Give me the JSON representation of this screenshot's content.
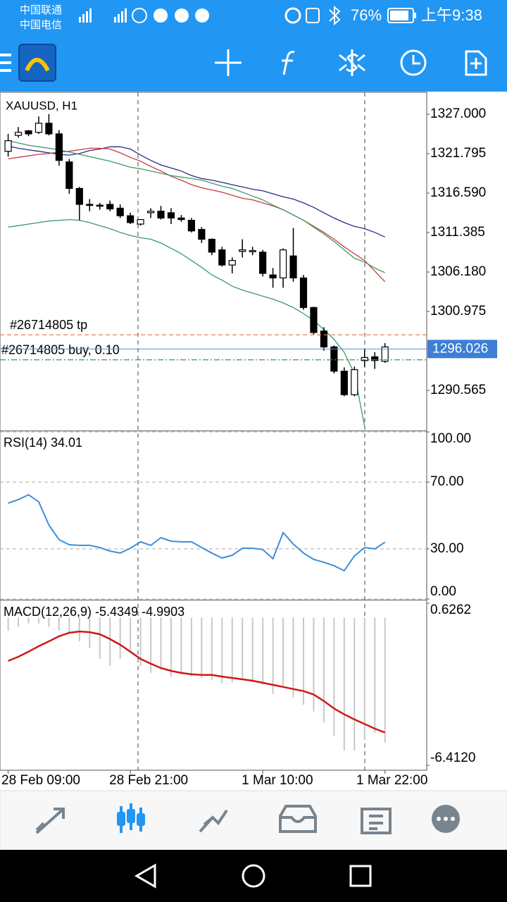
{
  "status_bar": {
    "carrier1": "中国联通",
    "carrier2": "中国电信",
    "battery": "76%",
    "time": "上午9:38"
  },
  "chart_data": [
    {
      "type": "candlestick",
      "title": "XAUUSD, H1",
      "xlim": [
        -0.8,
        41.1
      ],
      "open": [
        1322.1,
        1324.2,
        1324.8,
        1324.6,
        1325.8,
        1324.4,
        1320.7,
        1317.2,
        1315.1,
        1315.0,
        1315.1,
        1314.6,
        1313.6,
        1312.5,
        1314.0,
        1314.2,
        1314.0,
        1313.3,
        1313.0,
        1311.8,
        1310.5,
        1309.1,
        1307.1,
        1308.9,
        1309.0,
        1308.8,
        1305.8,
        1305.4,
        1308.3,
        1305.4,
        1301.5,
        1298.4,
        1296.3,
        1293.1,
        1290.0,
        1294.5,
        1295.0,
        1294.4
      ],
      "high": [
        1324.4,
        1325.3,
        1324.9,
        1326.7,
        1327.0,
        1324.9,
        1321.1,
        1317.4,
        1315.8,
        1315.3,
        1315.6,
        1315.1,
        1314.0,
        1313.1,
        1314.6,
        1314.9,
        1314.6,
        1313.7,
        1313.3,
        1312.1,
        1310.6,
        1309.5,
        1308.1,
        1310.5,
        1309.5,
        1309.1,
        1306.7,
        1309.3,
        1312.0,
        1305.8,
        1301.6,
        1298.9,
        1296.5,
        1293.6,
        1293.7,
        1296.1,
        1295.6,
        1296.8
      ],
      "low": [
        1321.4,
        1323.9,
        1324.1,
        1324.4,
        1324.2,
        1320.2,
        1316.5,
        1313.0,
        1314.2,
        1314.4,
        1314.2,
        1313.3,
        1312.5,
        1312.3,
        1313.3,
        1313.1,
        1312.5,
        1312.8,
        1311.4,
        1310.0,
        1308.4,
        1306.9,
        1306.0,
        1308.1,
        1308.4,
        1305.6,
        1304.1,
        1304.1,
        1304.9,
        1301.2,
        1297.9,
        1295.8,
        1292.8,
        1289.8,
        1289.8,
        1293.7,
        1293.4,
        1294.2
      ],
      "close": [
        1323.5,
        1324.6,
        1324.4,
        1325.8,
        1324.4,
        1320.9,
        1317.2,
        1315.1,
        1315.0,
        1314.9,
        1314.5,
        1313.6,
        1312.7,
        1313.1,
        1314.2,
        1313.3,
        1313.3,
        1313.1,
        1311.6,
        1310.5,
        1308.8,
        1307.1,
        1307.7,
        1309.1,
        1309.0,
        1306.0,
        1305.4,
        1309.1,
        1305.4,
        1301.5,
        1298.2,
        1296.3,
        1293.1,
        1290.0,
        1293.3,
        1294.9,
        1294.5,
        1296.3
      ],
      "series": [
        {
          "color": "#2a2a8c",
          "values": [
            1322.8,
            1322.5,
            1322.3,
            1322.1,
            1321.9,
            1321.7,
            1321.6,
            1321.8,
            1322.2,
            1322.4,
            1322.7,
            1322.7,
            1322.4,
            1321.6,
            1320.9,
            1320.3,
            1319.9,
            1319.5,
            1318.9,
            1318.5,
            1318.3,
            1318.0,
            1317.7,
            1317.4,
            1317.1,
            1316.9,
            1316.5,
            1316.1,
            1315.8,
            1315.3,
            1314.7,
            1314.0,
            1313.3,
            1312.7,
            1312.2,
            1311.9,
            1311.4,
            1310.8
          ]
        },
        {
          "color": "#c83a3a",
          "values": [
            1321.1,
            1321.3,
            1321.5,
            1321.7,
            1321.8,
            1322.0,
            1322.1,
            1322.3,
            1322.5,
            1322.5,
            1322.4,
            1321.9,
            1321.3,
            1320.8,
            1320.1,
            1319.5,
            1318.8,
            1318.3,
            1317.7,
            1317.3,
            1317.0,
            1316.7,
            1316.3,
            1315.9,
            1315.7,
            1315.3,
            1314.9,
            1314.4,
            1313.7,
            1313.0,
            1312.2,
            1311.4,
            1310.5,
            1309.5,
            1308.6,
            1307.7,
            1306.3,
            1304.9
          ]
        },
        {
          "color": "#3a9a68",
          "values": [
            1323.5,
            1323.2,
            1322.9,
            1322.7,
            1322.5,
            1322.3,
            1322.0,
            1321.7,
            1321.4,
            1321.1,
            1320.8,
            1320.4,
            1320.0,
            1319.8,
            1319.5,
            1319.2,
            1318.9,
            1318.7,
            1318.5,
            1318.3,
            1317.9,
            1317.5,
            1317.2,
            1316.7,
            1316.2,
            1315.7,
            1315.0,
            1314.4,
            1313.7,
            1313.0,
            1312.1,
            1311.2,
            1310.2,
            1309.1,
            1308.0,
            1307.5,
            1306.7,
            1306.1
          ]
        },
        {
          "color": "#3a9a68",
          "values": [
            1312.1,
            1312.3,
            1312.5,
            1312.7,
            1312.9,
            1313.0,
            1313.1,
            1313.0,
            1312.7,
            1312.3,
            1311.9,
            1311.4,
            1311.0,
            1310.7,
            1310.5,
            1310.0,
            1309.3,
            1308.6,
            1307.7,
            1306.8,
            1305.8,
            1305.1,
            1304.3,
            1303.8,
            1303.4,
            1303.0,
            1302.6,
            1302.1,
            1301.5,
            1300.7,
            1299.8,
            1298.6,
            1297.3,
            1295.6,
            1292.8,
            1285.8,
            null,
            null
          ]
        }
      ],
      "ylim": [
        1285.27,
        1329.88
      ],
      "yticks": [
        {
          "value": 1327,
          "label": "1327.000"
        },
        {
          "value": 1321.795,
          "label": "1321.795"
        },
        {
          "value": 1316.59,
          "label": "1316.590"
        },
        {
          "value": 1311.385,
          "label": "1311.385"
        },
        {
          "value": 1306.18,
          "label": "1306.180"
        },
        {
          "value": 1300.975,
          "label": "1300.975"
        },
        {
          "value": 1290.565,
          "label": "1290.565"
        }
      ],
      "levels": [
        {
          "label": "#26714805 tp",
          "value": 1297.9,
          "color": "#e8834e"
        },
        {
          "label": "#26714805 buy, 0.10",
          "value": 1294.6,
          "color": "#3a9a50"
        }
      ],
      "price": 1296.026
    },
    {
      "type": "line",
      "title": "RSI(14) 34.01",
      "xlim": [
        -0.8,
        41.1
      ],
      "color": "#3d8fd6",
      "values": [
        57.4,
        59.5,
        62.4,
        58.2,
        44.3,
        35.5,
        32.5,
        32.1,
        32.1,
        30.8,
        28.7,
        27.5,
        30.4,
        34.2,
        32.1,
        36.7,
        34.6,
        34.2,
        34.2,
        30.8,
        27.5,
        24.5,
        26.2,
        30.4,
        30.4,
        29.6,
        24.1,
        39.7,
        32.9,
        27.5,
        23.7,
        22.0,
        19.9,
        16.9,
        25.8,
        30.8,
        30.0,
        34.0
      ],
      "ylim": [
        0,
        100
      ],
      "yticks": [
        {
          "value": 100,
          "label": "100.00"
        },
        {
          "value": 70,
          "label": "70.00"
        },
        {
          "value": 30,
          "label": "30.00"
        },
        {
          "value": 0,
          "label": "0.00"
        }
      ]
    },
    {
      "type": "macd",
      "title": "MACD(12,26,9) -5.4349 -4.9903",
      "xlim": [
        -0.8,
        41.1
      ],
      "series": [
        {
          "color": "#c8c8c8",
          "values": [
            -0.57,
            -0.41,
            -0.26,
            -0.26,
            -0.41,
            -0.57,
            -0.72,
            -1.03,
            -1.33,
            -1.79,
            -2.1,
            -1.79,
            -1.48,
            -2.1,
            -2.4,
            -2.25,
            -2.56,
            -2.49,
            -2.56,
            -2.62,
            -2.71,
            -2.86,
            -2.8,
            -2.71,
            -2.8,
            -2.92,
            -3.32,
            -3.01,
            -3.47,
            -3.78,
            -4.08,
            -4.54,
            -5.15,
            -5.77,
            -5.77,
            -5.31,
            -5.0,
            -5.43
          ]
        },
        {
          "color": "#d01818",
          "values": [
            -1.88,
            -1.7,
            -1.48,
            -1.24,
            -1.03,
            -0.81,
            -0.66,
            -0.6,
            -0.63,
            -0.72,
            -0.93,
            -1.18,
            -1.48,
            -1.79,
            -2.0,
            -2.19,
            -2.31,
            -2.4,
            -2.46,
            -2.49,
            -2.49,
            -2.56,
            -2.62,
            -2.68,
            -2.74,
            -2.83,
            -2.92,
            -3.01,
            -3.1,
            -3.19,
            -3.34,
            -3.62,
            -3.95,
            -4.2,
            -4.42,
            -4.62,
            -4.82,
            -4.99
          ]
        }
      ],
      "ylim": [
        -6.412,
        0.6262
      ],
      "yticks": [
        0.6262,
        {
          "value": -6.412,
          "label": "-6.4120"
        }
      ],
      "xticks": [
        {
          "value": 0,
          "label": "28 Feb 09:00"
        },
        {
          "value": 12,
          "label": "28 Feb 21:00"
        },
        {
          "value": 25,
          "label": "1 Mar 10:00"
        },
        {
          "value": 37,
          "label": "1 Mar 22:00"
        }
      ]
    }
  ]
}
